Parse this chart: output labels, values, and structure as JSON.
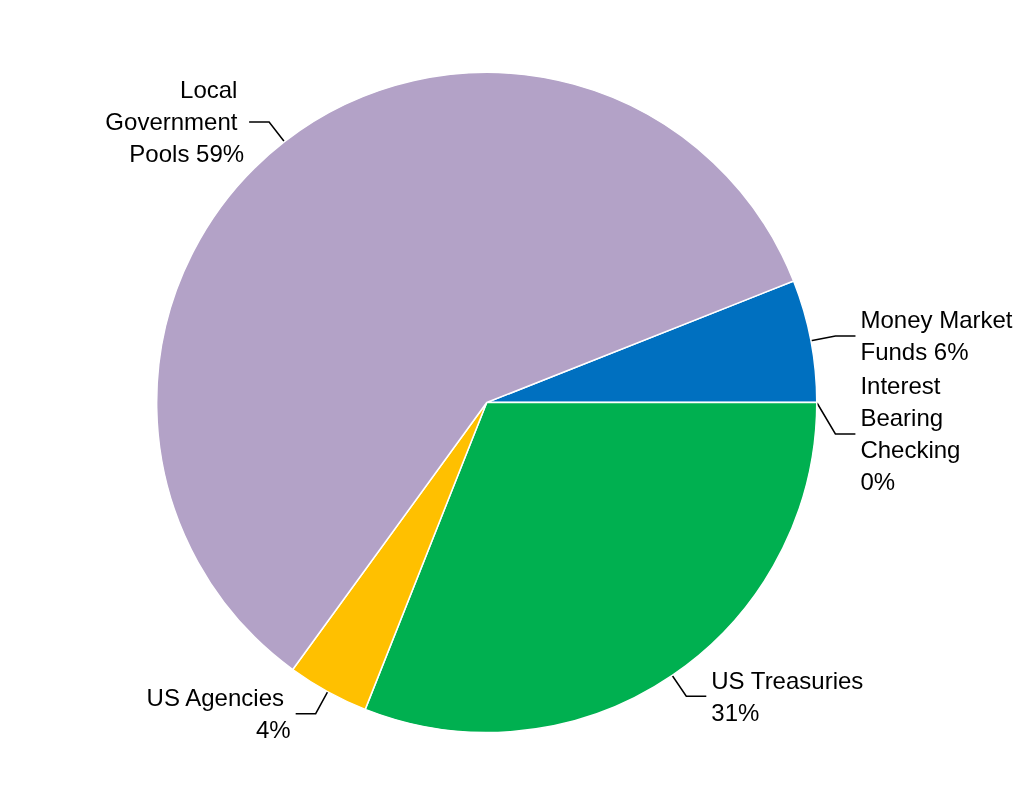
{
  "chart_data": {
    "type": "pie",
    "categories": [
      "Money Market Funds",
      "Interest Bearing Checking",
      "US Treasuries",
      "US Agencies",
      "Local Government Pools"
    ],
    "values": [
      6,
      0,
      31,
      4,
      59
    ],
    "value_labels": [
      "6%",
      "0%",
      "31%",
      "4%",
      "59%"
    ],
    "colors": [
      "#0070c0",
      "#ff5050",
      "#00b050",
      "#ffc000",
      "#b3a2c7"
    ]
  }
}
